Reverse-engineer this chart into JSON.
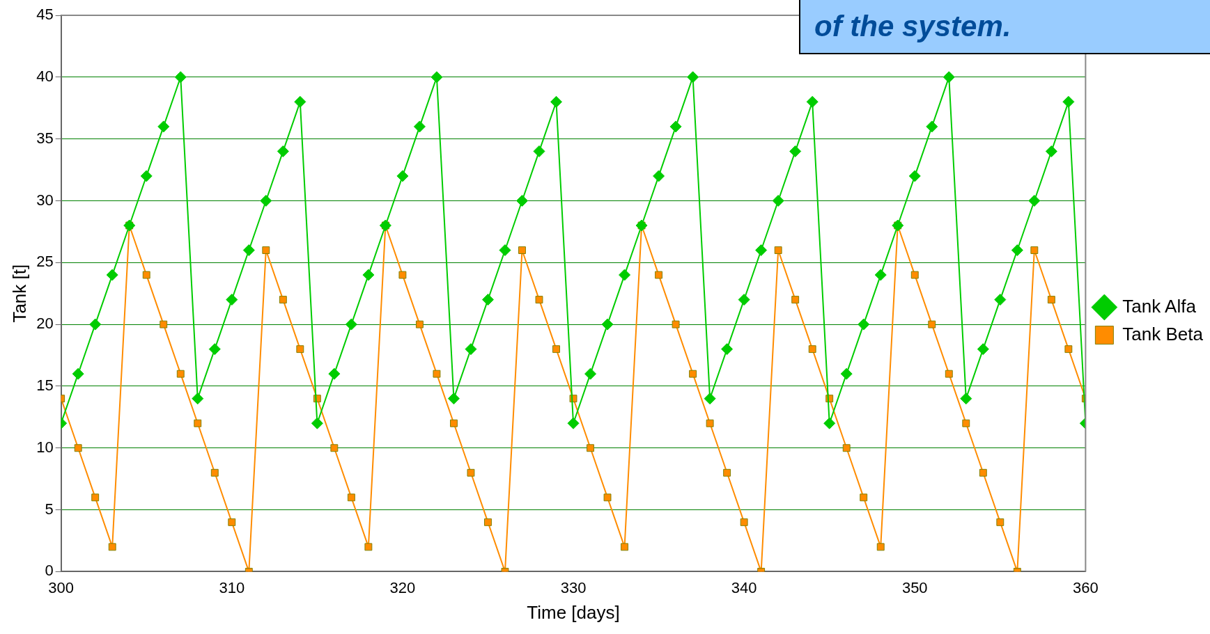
{
  "chart_data": {
    "type": "line",
    "xlabel": "Time [days]",
    "ylabel": "Tank [t]",
    "annotations": [
      "of the system."
    ],
    "x": [
      300,
      301,
      302,
      303,
      304,
      305,
      306,
      307,
      308,
      309,
      310,
      311,
      312,
      313,
      314,
      315,
      316,
      317,
      318,
      319,
      320,
      321,
      322,
      323,
      324,
      325,
      326,
      327,
      328,
      329,
      330,
      331,
      332,
      333,
      334,
      335,
      336,
      337,
      338,
      339,
      340,
      341,
      342,
      343,
      344,
      345,
      346,
      347,
      348,
      349,
      350,
      351,
      352,
      353,
      354,
      355,
      356,
      357,
      358,
      359,
      360
    ],
    "series": [
      {
        "name": "Tank Alfa",
        "color": "#00cc00",
        "marker": "diamond",
        "values": [
          12,
          16,
          20,
          24,
          28,
          32,
          36,
          40,
          14,
          18,
          22,
          26,
          30,
          34,
          38,
          12,
          16,
          20,
          24,
          28,
          32,
          36,
          40,
          14,
          18,
          22,
          26,
          30,
          34,
          38,
          12,
          16,
          20,
          24,
          28,
          32,
          36,
          40,
          14,
          18,
          22,
          26,
          30,
          34,
          38,
          12,
          16,
          20,
          24,
          28,
          32,
          36,
          40,
          14,
          18,
          22,
          26,
          30,
          34,
          38,
          12
        ]
      },
      {
        "name": "Tank Beta",
        "color": "#ff8c00",
        "marker": "square",
        "values": [
          14,
          10,
          6,
          2,
          28,
          24,
          20,
          16,
          12,
          8,
          4,
          0,
          26,
          22,
          18,
          14,
          10,
          6,
          2,
          28,
          24,
          20,
          16,
          12,
          8,
          4,
          0,
          26,
          22,
          18,
          14,
          10,
          6,
          2,
          28,
          24,
          20,
          16,
          12,
          8,
          4,
          0,
          26,
          22,
          18,
          14,
          10,
          6,
          2,
          28,
          24,
          20,
          16,
          12,
          8,
          4,
          0,
          26,
          22,
          18,
          14
        ]
      }
    ],
    "xlim": [
      300,
      360
    ],
    "xticks": [
      300,
      310,
      320,
      330,
      340,
      350,
      360
    ],
    "ylim": [
      0,
      45
    ],
    "yticks": [
      0,
      5,
      10,
      15,
      20,
      25,
      30,
      35,
      40,
      45
    ],
    "grid": "y",
    "legend": "right",
    "line_style": "solid"
  }
}
